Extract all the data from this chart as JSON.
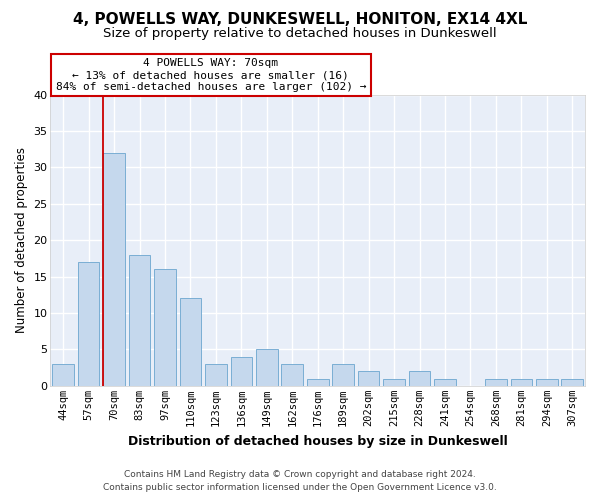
{
  "title": "4, POWELLS WAY, DUNKESWELL, HONITON, EX14 4XL",
  "subtitle": "Size of property relative to detached houses in Dunkeswell",
  "xlabel": "Distribution of detached houses by size in Dunkeswell",
  "ylabel": "Number of detached properties",
  "categories": [
    "44sqm",
    "57sqm",
    "70sqm",
    "83sqm",
    "97sqm",
    "110sqm",
    "123sqm",
    "136sqm",
    "149sqm",
    "162sqm",
    "176sqm",
    "189sqm",
    "202sqm",
    "215sqm",
    "228sqm",
    "241sqm",
    "254sqm",
    "268sqm",
    "281sqm",
    "294sqm",
    "307sqm"
  ],
  "values": [
    3,
    17,
    32,
    18,
    16,
    12,
    3,
    4,
    5,
    3,
    1,
    3,
    2,
    1,
    2,
    1,
    0,
    1,
    1,
    1,
    1
  ],
  "bar_color": "#c5d8ed",
  "bar_edge_color": "#7aaed4",
  "highlight_line_color": "#cc0000",
  "annotation_line1": "4 POWELLS WAY: 70sqm",
  "annotation_line2": "← 13% of detached houses are smaller (16)",
  "annotation_line3": "84% of semi-detached houses are larger (102) →",
  "annotation_box_color": "#ffffff",
  "annotation_box_edge_color": "#cc0000",
  "ylim": [
    0,
    40
  ],
  "plot_bg_color": "#e8eef8",
  "fig_bg_color": "#ffffff",
  "grid_color": "#ffffff",
  "footer_line1": "Contains HM Land Registry data © Crown copyright and database right 2024.",
  "footer_line2": "Contains public sector information licensed under the Open Government Licence v3.0.",
  "title_fontsize": 11,
  "subtitle_fontsize": 9.5,
  "xlabel_fontsize": 9,
  "ylabel_fontsize": 8.5,
  "tick_fontsize": 7.5,
  "annotation_fontsize": 8
}
